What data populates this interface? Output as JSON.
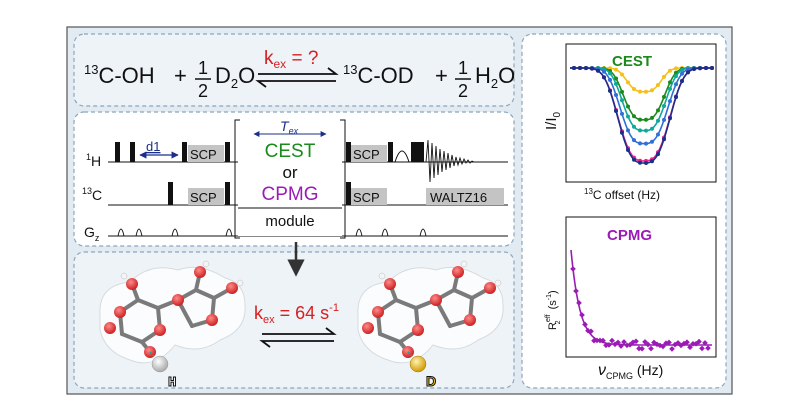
{
  "equation": {
    "left_species": "C-OH",
    "left_iso": "13",
    "plus1": "+",
    "frac1_num": "1",
    "frac1_den": "2",
    "left_water": "D",
    "left_water_sub": "2",
    "left_water_end": "O",
    "kex_label": "k",
    "kex_sub": "ex",
    "kex_value": " = ?",
    "right_iso": "13",
    "right_species": "C-OD",
    "plus2": "+",
    "frac2_num": "1",
    "frac2_den": "2",
    "right_water": "H",
    "right_water_sub": "2",
    "right_water_end": "O"
  },
  "pulse": {
    "h_iso": "1",
    "h_label": "H",
    "c_iso": "13",
    "c_label": "C",
    "g_label": "G",
    "g_sub": "z",
    "d1": "d1",
    "tex_main": "T",
    "tex_sub": "ex",
    "scp": "SCP",
    "cest": "CEST",
    "or": "or",
    "cpmg": "CPMG",
    "module": "module",
    "waltz": "WALTZ16"
  },
  "exchange": {
    "kex_label": "k",
    "kex_sub": "ex",
    "kex_value": " = 64 s",
    "kex_exp": "-1",
    "h_atom": "H",
    "d_atom": "D"
  },
  "cest_plot": {
    "title": "CEST",
    "ylabel": "I/I",
    "ylabel_sub": "0",
    "xlabel_iso": "13",
    "xlabel": "C offset (Hz)"
  },
  "cpmg_plot": {
    "title": "CPMG",
    "ylabel": "R",
    "ylabel_sup": "eff",
    "ylabel_sub": "2",
    "ylabel_unit": " (s",
    "ylabel_unit_exp": "-1",
    "ylabel_close": ")",
    "xlabel_nu": "ν",
    "xlabel_sub": "CPMG",
    "xlabel_unit": " (Hz)"
  },
  "colors": {
    "red": "#d42020",
    "green": "#1a8a1a",
    "purple": "#9b1bb5",
    "blue": "#2f6fd6",
    "magenta": "#e8258f",
    "yellow": "#f5c01a",
    "teal": "#0fa89a",
    "navy": "#1a2f8a"
  }
}
